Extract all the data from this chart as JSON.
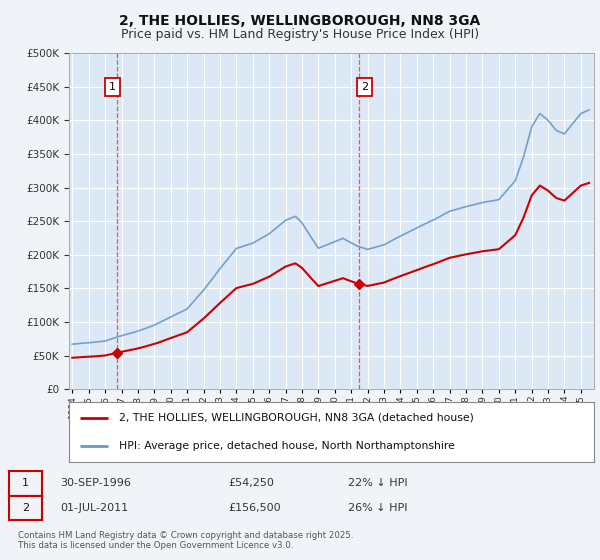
{
  "title": "2, THE HOLLIES, WELLINGBOROUGH, NN8 3GA",
  "subtitle": "Price paid vs. HM Land Registry's House Price Index (HPI)",
  "legend_line1": "2, THE HOLLIES, WELLINGBOROUGH, NN8 3GA (detached house)",
  "legend_line2": "HPI: Average price, detached house, North Northamptonshire",
  "annotation1_date": "30-SEP-1996",
  "annotation1_price": "£54,250",
  "annotation1_hpi": "22% ↓ HPI",
  "annotation2_date": "01-JUL-2011",
  "annotation2_price": "£156,500",
  "annotation2_hpi": "26% ↓ HPI",
  "footnote": "Contains HM Land Registry data © Crown copyright and database right 2025.\nThis data is licensed under the Open Government Licence v3.0.",
  "sale1_year": 1996.75,
  "sale1_value": 54250,
  "sale2_year": 2011.5,
  "sale2_value": 156500,
  "red_color": "#cc0000",
  "blue_color": "#6699cc",
  "ylim_min": 0,
  "ylim_max": 500000,
  "xlim_min": 1993.8,
  "xlim_max": 2025.8,
  "plot_bg": "#dce8f5",
  "fig_bg": "#f0f4f8",
  "grid_color": "#ffffff",
  "title_fontsize": 10,
  "subtitle_fontsize": 9
}
